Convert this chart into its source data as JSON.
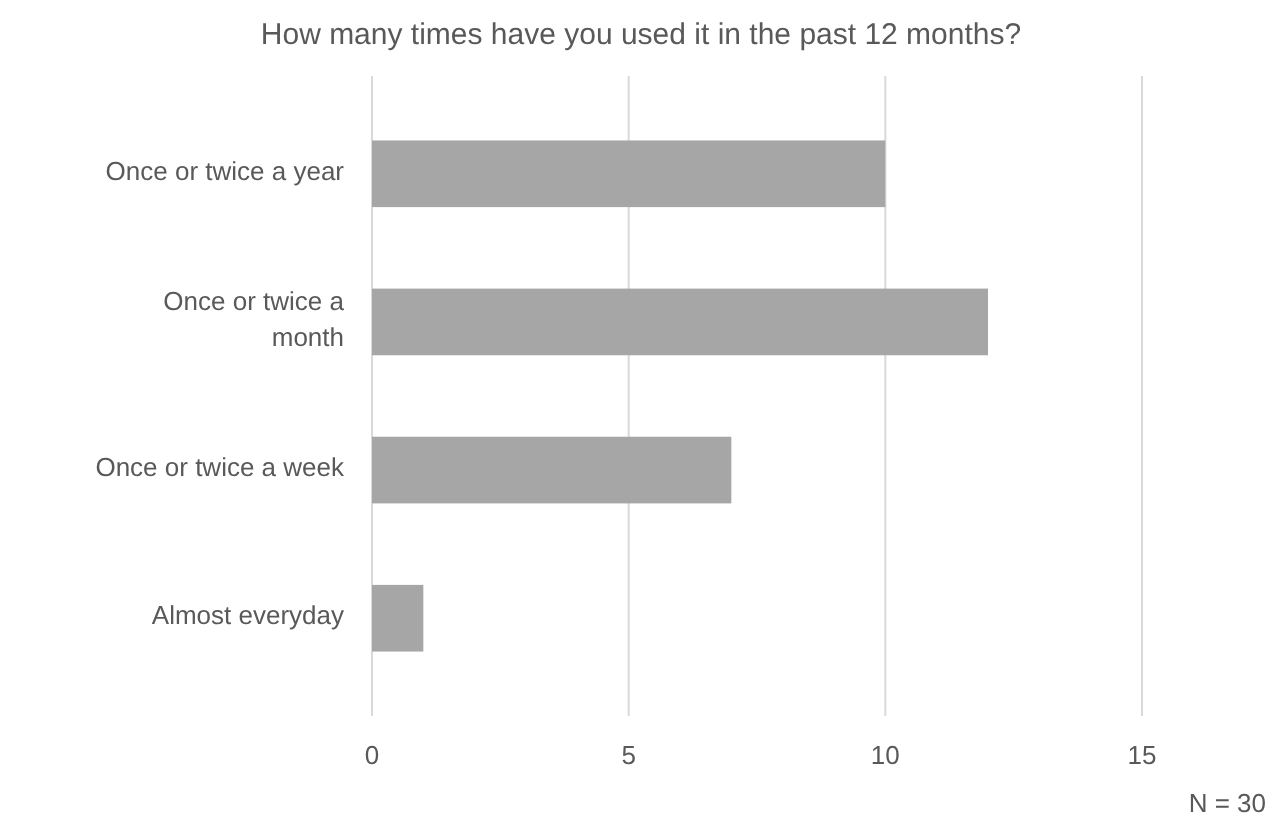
{
  "chart_data": {
    "type": "bar",
    "orientation": "horizontal",
    "title": "How many times have you used it in the past 12 months?",
    "categories": [
      "Once or twice a year",
      "Once or twice a month",
      "Once or twice a week",
      "Almost everyday"
    ],
    "values": [
      10,
      12,
      7,
      1
    ],
    "color": "#a6a6a6",
    "xlim": [
      0,
      15
    ],
    "xticks": [
      0,
      5,
      10,
      15
    ],
    "grid": "x",
    "annotations": [
      "N = 30"
    ]
  }
}
